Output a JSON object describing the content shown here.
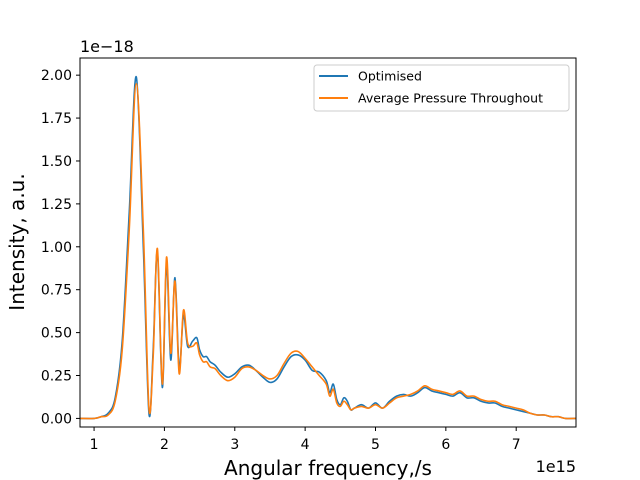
{
  "chart_data": {
    "type": "line",
    "title": "",
    "xlabel": "Angular frequency,/s",
    "ylabel": "Intensity, a.u.",
    "x_offset_text": "1e15",
    "y_offset_text": "1e−18",
    "xlim": [
      0.8,
      7.85
    ],
    "ylim": [
      -0.05,
      2.1
    ],
    "xticks": [
      1,
      2,
      3,
      4,
      5,
      6,
      7
    ],
    "xtick_labels": [
      "1",
      "2",
      "3",
      "4",
      "5",
      "6",
      "7"
    ],
    "yticks": [
      0.0,
      0.25,
      0.5,
      0.75,
      1.0,
      1.25,
      1.5,
      1.75,
      2.0
    ],
    "ytick_labels": [
      "0.00",
      "0.25",
      "0.50",
      "0.75",
      "1.00",
      "1.25",
      "1.50",
      "1.75",
      "2.00"
    ],
    "legend_position": "top-right",
    "grid": false,
    "series": [
      {
        "name": "Optimised",
        "color": "#1f77b4",
        "x": [
          0.8,
          1.0,
          1.1,
          1.2,
          1.3,
          1.4,
          1.5,
          1.6,
          1.7,
          1.78,
          1.84,
          1.9,
          1.97,
          2.03,
          2.09,
          2.15,
          2.21,
          2.27,
          2.33,
          2.4,
          2.46,
          2.5,
          2.55,
          2.6,
          2.65,
          2.72,
          2.8,
          2.9,
          3.0,
          3.1,
          3.2,
          3.3,
          3.4,
          3.5,
          3.6,
          3.7,
          3.8,
          3.9,
          4.0,
          4.1,
          4.2,
          4.3,
          4.35,
          4.4,
          4.45,
          4.5,
          4.55,
          4.6,
          4.65,
          4.7,
          4.8,
          4.9,
          5.0,
          5.1,
          5.2,
          5.3,
          5.4,
          5.5,
          5.6,
          5.7,
          5.8,
          5.9,
          6.0,
          6.1,
          6.2,
          6.3,
          6.4,
          6.5,
          6.6,
          6.7,
          6.8,
          6.9,
          7.0,
          7.1,
          7.2,
          7.3,
          7.4,
          7.5,
          7.6,
          7.7,
          7.85
        ],
        "y": [
          0.0,
          0.0,
          0.01,
          0.03,
          0.12,
          0.45,
          1.2,
          1.99,
          1.0,
          0.03,
          0.4,
          0.97,
          0.18,
          0.9,
          0.34,
          0.82,
          0.29,
          0.6,
          0.42,
          0.45,
          0.47,
          0.4,
          0.36,
          0.36,
          0.33,
          0.31,
          0.27,
          0.24,
          0.26,
          0.3,
          0.31,
          0.28,
          0.24,
          0.21,
          0.23,
          0.3,
          0.36,
          0.37,
          0.34,
          0.28,
          0.27,
          0.22,
          0.15,
          0.2,
          0.11,
          0.08,
          0.12,
          0.1,
          0.05,
          0.06,
          0.08,
          0.06,
          0.09,
          0.06,
          0.1,
          0.13,
          0.14,
          0.13,
          0.15,
          0.18,
          0.16,
          0.15,
          0.14,
          0.13,
          0.15,
          0.12,
          0.12,
          0.1,
          0.09,
          0.09,
          0.07,
          0.06,
          0.05,
          0.04,
          0.03,
          0.02,
          0.02,
          0.01,
          0.01,
          0.0,
          0.0
        ]
      },
      {
        "name": "Average Pressure Throughout",
        "color": "#ff7f0e",
        "x": [
          0.8,
          1.0,
          1.1,
          1.2,
          1.3,
          1.4,
          1.5,
          1.6,
          1.7,
          1.78,
          1.84,
          1.9,
          1.97,
          2.03,
          2.09,
          2.15,
          2.21,
          2.27,
          2.33,
          2.4,
          2.46,
          2.5,
          2.55,
          2.6,
          2.65,
          2.72,
          2.8,
          2.9,
          3.0,
          3.1,
          3.2,
          3.3,
          3.4,
          3.5,
          3.6,
          3.7,
          3.8,
          3.9,
          4.0,
          4.1,
          4.2,
          4.3,
          4.35,
          4.4,
          4.45,
          4.5,
          4.55,
          4.6,
          4.65,
          4.7,
          4.8,
          4.9,
          5.0,
          5.1,
          5.2,
          5.3,
          5.4,
          5.5,
          5.6,
          5.7,
          5.8,
          5.9,
          6.0,
          6.1,
          6.2,
          6.3,
          6.4,
          6.5,
          6.6,
          6.7,
          6.8,
          6.9,
          7.0,
          7.1,
          7.2,
          7.3,
          7.4,
          7.5,
          7.6,
          7.7,
          7.85
        ],
        "y": [
          0.0,
          0.0,
          0.01,
          0.02,
          0.1,
          0.4,
          1.1,
          1.95,
          1.1,
          0.06,
          0.36,
          0.99,
          0.2,
          0.94,
          0.38,
          0.8,
          0.26,
          0.63,
          0.44,
          0.42,
          0.44,
          0.37,
          0.33,
          0.33,
          0.3,
          0.29,
          0.25,
          0.22,
          0.24,
          0.29,
          0.3,
          0.28,
          0.25,
          0.23,
          0.25,
          0.32,
          0.38,
          0.39,
          0.35,
          0.3,
          0.25,
          0.2,
          0.13,
          0.17,
          0.09,
          0.07,
          0.1,
          0.08,
          0.05,
          0.06,
          0.07,
          0.06,
          0.08,
          0.06,
          0.09,
          0.12,
          0.13,
          0.14,
          0.16,
          0.19,
          0.17,
          0.16,
          0.15,
          0.14,
          0.16,
          0.13,
          0.13,
          0.11,
          0.1,
          0.1,
          0.08,
          0.07,
          0.06,
          0.05,
          0.03,
          0.02,
          0.02,
          0.01,
          0.01,
          0.0,
          0.0
        ]
      }
    ]
  }
}
